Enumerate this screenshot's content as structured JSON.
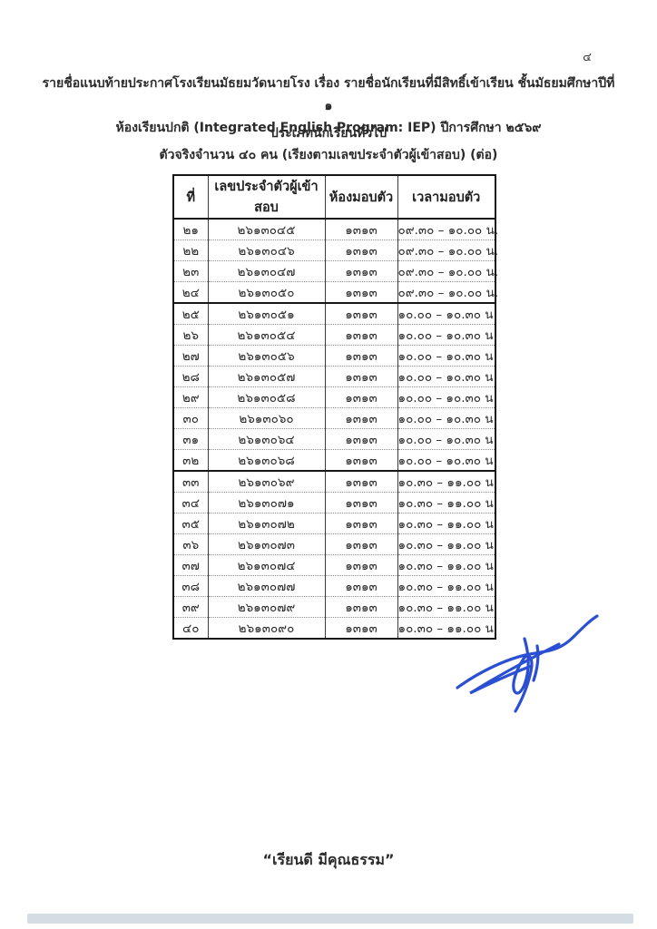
{
  "page": {
    "page_number": "๔",
    "title_line1": "รายชื่อแนบท้ายประกาศโรงเรียนมัธยมวัดนายโรง เรื่อง รายชื่อนักเรียนที่มีสิทธิ์เข้าเรียน ชั้นมัธยมศึกษาปีที่ ๑",
    "title_line2": "ห้องเรียนปกติ (Integrated English Program: IEP) ปีการศึกษา ๒๕๖๙",
    "subtitle1": "ประเภทนักเรียนทั่วไป",
    "subtitle2": "ตัวจริงจำนวน ๔๐ คน (เรียงตามเลขประจำตัวผู้เข้าสอบ) (ต่อ)",
    "footer_quote": "“เรียนดี มีคุณธรรม”"
  },
  "table": {
    "headers": [
      "ที่",
      "เลขประจำตัวผู้เข้าสอบ",
      "ห้องมอบตัว",
      "เวลามอบตัว"
    ],
    "groups": [
      {
        "report_time": "๐๙.๓๐ – ๑๐.๐๐ น.",
        "rows": [
          [
            "๒๑",
            "๒๖๑๓๐๔๕",
            "๑๓๑๓",
            "๐๙.๓๐ – ๑๐.๐๐ น."
          ],
          [
            "๒๒",
            "๒๖๑๓๐๔๖",
            "๑๓๑๓",
            "๐๙.๓๐ – ๑๐.๐๐ น."
          ],
          [
            "๒๓",
            "๒๖๑๓๐๔๗",
            "๑๓๑๓",
            "๐๙.๓๐ – ๑๐.๐๐ น."
          ],
          [
            "๒๔",
            "๒๖๑๓๐๕๐",
            "๑๓๑๓",
            "๐๙.๓๐ – ๑๐.๐๐ น."
          ]
        ]
      },
      {
        "report_time": "๑๐.๐๐ – ๑๐.๓๐ น.",
        "rows": [
          [
            "๒๕",
            "๒๖๑๓๐๕๑",
            "๑๓๑๓",
            "๑๐.๐๐ – ๑๐.๓๐ น."
          ],
          [
            "๒๖",
            "๒๖๑๓๐๕๔",
            "๑๓๑๓",
            "๑๐.๐๐ – ๑๐.๓๐ น."
          ],
          [
            "๒๗",
            "๒๖๑๓๐๕๖",
            "๑๓๑๓",
            "๑๐.๐๐ – ๑๐.๓๐ น."
          ],
          [
            "๒๘",
            "๒๖๑๓๐๕๗",
            "๑๓๑๓",
            "๑๐.๐๐ – ๑๐.๓๐ น."
          ],
          [
            "๒๙",
            "๒๖๑๓๐๕๘",
            "๑๓๑๓",
            "๑๐.๐๐ – ๑๐.๓๐ น."
          ],
          [
            "๓๐",
            "๒๖๑๓๐๖๐",
            "๑๓๑๓",
            "๑๐.๐๐ – ๑๐.๓๐ น."
          ],
          [
            "๓๑",
            "๒๖๑๓๐๖๔",
            "๑๓๑๓",
            "๑๐.๐๐ – ๑๐.๓๐ น."
          ],
          [
            "๓๒",
            "๒๖๑๓๐๖๘",
            "๑๓๑๓",
            "๑๐.๐๐ – ๑๐.๓๐ น."
          ]
        ]
      },
      {
        "report_time": "๑๐.๓๐ – ๑๑.๐๐ น.",
        "rows": [
          [
            "๓๓",
            "๒๖๑๓๐๖๙",
            "๑๓๑๓",
            "๑๐.๓๐ – ๑๑.๐๐ น."
          ],
          [
            "๓๔",
            "๒๖๑๓๐๗๑",
            "๑๓๑๓",
            "๑๐.๓๐ – ๑๑.๐๐ น."
          ],
          [
            "๓๕",
            "๒๖๑๓๐๗๒",
            "๑๓๑๓",
            "๑๐.๓๐ – ๑๑.๐๐ น."
          ],
          [
            "๓๖",
            "๒๖๑๓๐๗๓",
            "๑๓๑๓",
            "๑๐.๓๐ – ๑๑.๐๐ น."
          ],
          [
            "๓๗",
            "๒๖๑๓๐๗๔",
            "๑๓๑๓",
            "๑๐.๓๐ – ๑๑.๐๐ น."
          ],
          [
            "๓๘",
            "๒๖๑๓๐๗๗",
            "๑๓๑๓",
            "๑๐.๓๐ – ๑๑.๐๐ น."
          ],
          [
            "๓๙",
            "๒๖๑๓๐๗๙",
            "๑๓๑๓",
            "๑๐.๓๐ – ๑๑.๐๐ น."
          ],
          [
            "๔๐",
            "๒๖๑๓๐๙๐",
            "๑๓๑๓",
            "๑๐.๓๐ – ๑๑.๐๐ น."
          ]
        ]
      }
    ]
  },
  "signature": {
    "ink_color": "#2a4fd2"
  }
}
